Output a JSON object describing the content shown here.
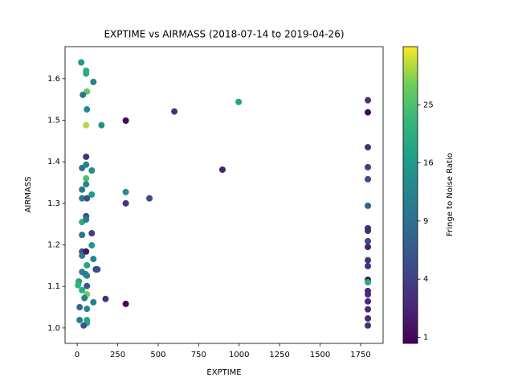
{
  "chart_data": {
    "type": "scatter",
    "title": "EXPTIME vs AIRMASS (2018-07-14 to 2019-04-26)",
    "x_label": "EXPTIME",
    "y_label": "AIRMASS",
    "xlim": [
      -75,
      1889
    ],
    "xticks": [
      0,
      250,
      500,
      750,
      1000,
      1250,
      1500,
      1750
    ],
    "ylim": [
      0.963,
      1.677
    ],
    "yticks": [
      {
        "value": 1,
        "label": "1.0"
      },
      1.1,
      1.2,
      1.3,
      1.4,
      1.5,
      1.6
    ],
    "colorbar": {
      "label": "Fringe to Noise Ratio",
      "colormap": "viridis",
      "scale": "sqrt",
      "clim": [
        0.8,
        36
      ],
      "ticks": [
        1,
        4,
        9,
        16,
        25
      ]
    },
    "series": [
      {
        "x": [
          25,
          55,
          55,
          100,
          60,
          35,
          60,
          55,
          150,
          300,
          600,
          997,
          1795,
          1795,
          1795,
          1795,
          1795,
          1795,
          1795,
          1795,
          1795,
          1795,
          1795,
          1795,
          1795,
          1795,
          1795,
          1795,
          1795,
          1795,
          1795,
          1795,
          55,
          55,
          30,
          90,
          55,
          55,
          30,
          90,
          30,
          60,
          300,
          300,
          446,
          897,
          30,
          55,
          55,
          30,
          90,
          90,
          30,
          30,
          55,
          100,
          60,
          30,
          50,
          115,
          125,
          60,
          10,
          5,
          60,
          30,
          60,
          45,
          100,
          175,
          300,
          15,
          60,
          15,
          60,
          60,
          40
        ],
        "values": [
          1.639,
          1.619,
          1.612,
          1.592,
          1.569,
          1.561,
          1.526,
          1.488,
          1.488,
          1.499,
          1.521,
          1.544,
          1.548,
          1.519,
          1.435,
          1.387,
          1.358,
          1.294,
          1.24,
          1.234,
          1.209,
          1.195,
          1.163,
          1.149,
          1.116,
          1.11,
          1.089,
          1.081,
          1.064,
          1.045,
          1.023,
          1.006,
          1.412,
          1.393,
          1.385,
          1.379,
          1.36,
          1.346,
          1.333,
          1.321,
          1.312,
          1.312,
          1.327,
          1.3,
          1.312,
          1.381,
          1.255,
          1.269,
          1.261,
          1.224,
          1.228,
          1.199,
          1.184,
          1.174,
          1.184,
          1.166,
          1.151,
          1.135,
          1.13,
          1.141,
          1.141,
          1.126,
          1.112,
          1.103,
          1.101,
          1.091,
          1.081,
          1.072,
          1.062,
          1.07,
          1.058,
          1.05,
          1.046,
          1.019,
          1.019,
          1.012,
          1.006
        ],
        "c": [
          16,
          20,
          20,
          12,
          27,
          10,
          13,
          32,
          14,
          1,
          3,
          18,
          3,
          1,
          3,
          4,
          5,
          7,
          2.5,
          2.5,
          5,
          2,
          3,
          3,
          1.5,
          20,
          2.5,
          2.5,
          2.5,
          2.5,
          2.5,
          3,
          3,
          12,
          10,
          14,
          25,
          12,
          11,
          16,
          11,
          5,
          14,
          3,
          5,
          2,
          20,
          5,
          11,
          10,
          4,
          15,
          6,
          11,
          1.5,
          12,
          18,
          12,
          11,
          5,
          5,
          12,
          18,
          22,
          6,
          20,
          28,
          11,
          12,
          3,
          1,
          8,
          12,
          11,
          18,
          18,
          6
        ]
      }
    ]
  }
}
